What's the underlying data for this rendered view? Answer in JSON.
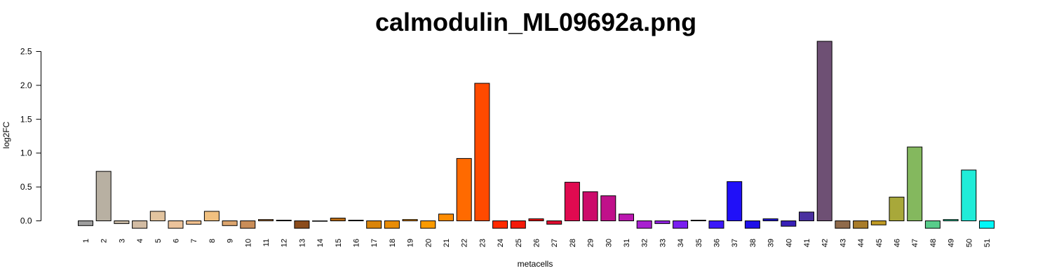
{
  "chart_data": {
    "type": "bar",
    "title": "calmodulin_ML09692a.png",
    "xlabel": "metacells",
    "ylabel": "log2FC",
    "ylim": [
      -0.1,
      2.65
    ],
    "y_ticks": [
      "0.0",
      "0.5",
      "1.0",
      "1.5",
      "2.0",
      "2.5"
    ],
    "y_tick_values": [
      0.0,
      0.5,
      1.0,
      1.5,
      2.0,
      2.5
    ],
    "grid": false,
    "legend": "none",
    "categories": [
      "1",
      "2",
      "3",
      "4",
      "5",
      "6",
      "7",
      "8",
      "9",
      "10",
      "11",
      "12",
      "13",
      "14",
      "15",
      "16",
      "17",
      "18",
      "19",
      "20",
      "21",
      "22",
      "23",
      "24",
      "25",
      "26",
      "27",
      "28",
      "29",
      "30",
      "31",
      "32",
      "33",
      "34",
      "35",
      "36",
      "37",
      "38",
      "39",
      "40",
      "41",
      "42",
      "43",
      "44",
      "45",
      "46",
      "47",
      "48",
      "49",
      "50",
      "51"
    ],
    "values": [
      -0.07,
      0.73,
      -0.04,
      -0.11,
      0.14,
      -0.11,
      -0.05,
      0.14,
      -0.07,
      -0.11,
      0.02,
      0.01,
      -0.11,
      0.0,
      0.04,
      0.01,
      -0.11,
      -0.11,
      0.02,
      -0.11,
      0.1,
      0.92,
      2.03,
      -0.11,
      -0.11,
      0.03,
      -0.05,
      0.57,
      0.43,
      0.37,
      0.1,
      -0.11,
      -0.04,
      -0.11,
      0.01,
      -0.11,
      0.58,
      -0.11,
      0.03,
      -0.08,
      0.13,
      2.65,
      -0.11,
      -0.11,
      -0.06,
      0.35,
      1.09,
      -0.11,
      0.02,
      0.75,
      -0.11
    ],
    "colors": [
      "#9e9e9e",
      "#b8b0a2",
      "#c6b7a2",
      "#d3bca3",
      "#e2c49f",
      "#ecc39b",
      "#f2c18f",
      "#f0c080",
      "#dca56e",
      "#c98d58",
      "#b57840",
      "#a5652c",
      "#8b4c1c",
      "#a05a1a",
      "#b86a14",
      "#c97a0e",
      "#d9840a",
      "#e88c06",
      "#f29300",
      "#fa9a00",
      "#ff8c00",
      "#ff6a00",
      "#ff4a00",
      "#ff2a00",
      "#f51a0a",
      "#e81010",
      "#e00c30",
      "#e00a50",
      "#cc0a6a",
      "#c0108a",
      "#bb18b0",
      "#a820d0",
      "#9020e0",
      "#7a1ef0",
      "#5a1cf8",
      "#3c18f8",
      "#2010f8",
      "#1e10e8",
      "#2018d0",
      "#3820b8",
      "#4a30a0",
      "#6e5074",
      "#8f6a4a",
      "#a87c2a",
      "#c09a24",
      "#a8a83a",
      "#84b85e",
      "#58cc8a",
      "#38d8a8",
      "#20ecd8",
      "#00f8f8"
    ]
  }
}
